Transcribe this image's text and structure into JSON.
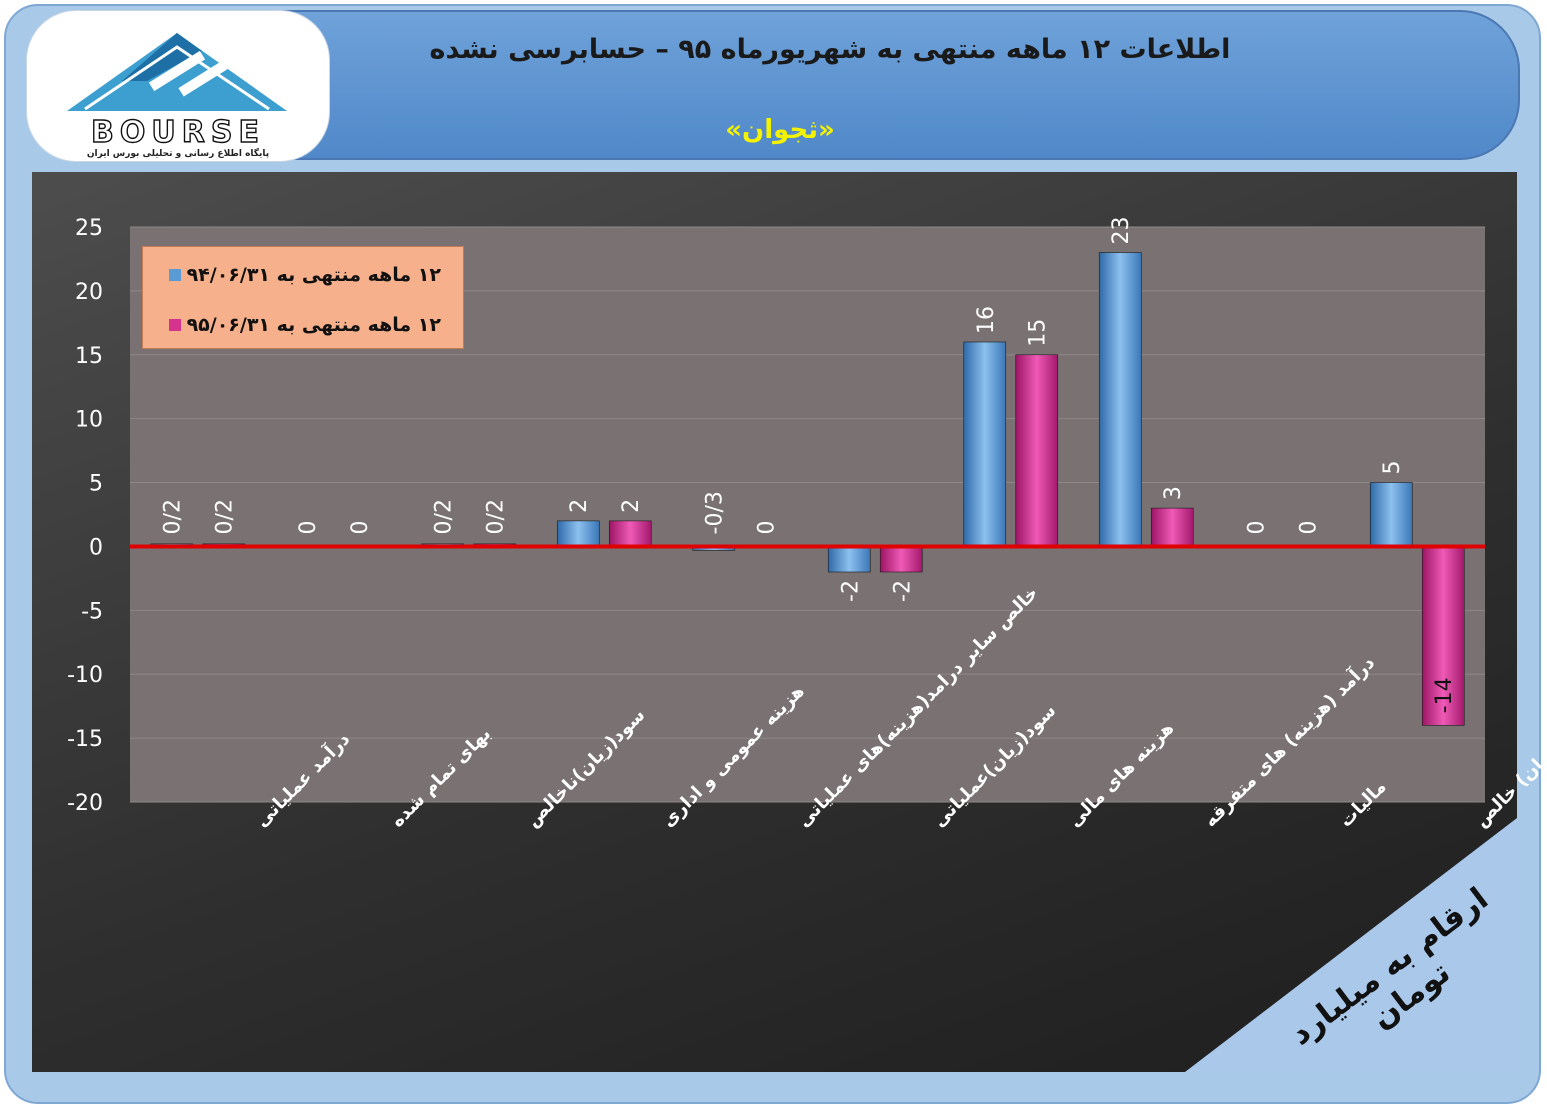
{
  "header": {
    "title": "اطلاعات ۱۲  ماهه منتهی به شهریورماه ۹۵ – حسابرسی نشده",
    "company": "«ثجوان»"
  },
  "logo": {
    "name": "BOURSE",
    "tagline": "پایگاه اطلاع رسانی و تحلیلی بورس ایران"
  },
  "unit_note": "ارقام به میلیارد تومان",
  "colors": {
    "series_1": "#5b9bd5",
    "series_2": "#d6338f",
    "zero_line": "#e00000",
    "plot_bg": "#7a7272",
    "legend_bg": "#f6b08c",
    "corner_bg": "#a9c8ea"
  },
  "chart_data": {
    "type": "bar",
    "categories": [
      "درآمد عملیاتی",
      "بهای تمام شده",
      "سود(زیان)ناخالص",
      "هزینه عمومی و اداری",
      "خالص سایر درامد(هزینه)های عملیاتی",
      "سود(زیان)عملیاتی",
      "هزینه های مالی",
      "درآمد (هزینه) های متفرقه",
      "مالیات",
      "سود(زیان) خالص"
    ],
    "series": [
      {
        "name": "۱۲ ماهه منتهی به ۹۴/۰۶/۳۱",
        "values": [
          0.2,
          0,
          0.2,
          2,
          -0.3,
          -2,
          16,
          23,
          0,
          5
        ],
        "labels": [
          "0/2",
          "0",
          "0/2",
          "2",
          "-0/3",
          "-2",
          "16",
          "23",
          "0",
          "5"
        ]
      },
      {
        "name": "۱۲ ماهه منتهی به ۹۵/۰۶/۳۱",
        "values": [
          0.2,
          0,
          0.2,
          2,
          0,
          -2,
          15,
          3,
          0,
          -14
        ],
        "labels": [
          "0/2",
          "0",
          "0/2",
          "2",
          "0",
          "-2",
          "15",
          "3",
          "0",
          "-14"
        ]
      }
    ],
    "yticks": [
      25,
      20,
      15,
      10,
      5,
      0,
      -5,
      -10,
      -15,
      -20
    ],
    "ylim": [
      -20,
      25
    ],
    "grid": true,
    "legend_position": "top-left"
  }
}
